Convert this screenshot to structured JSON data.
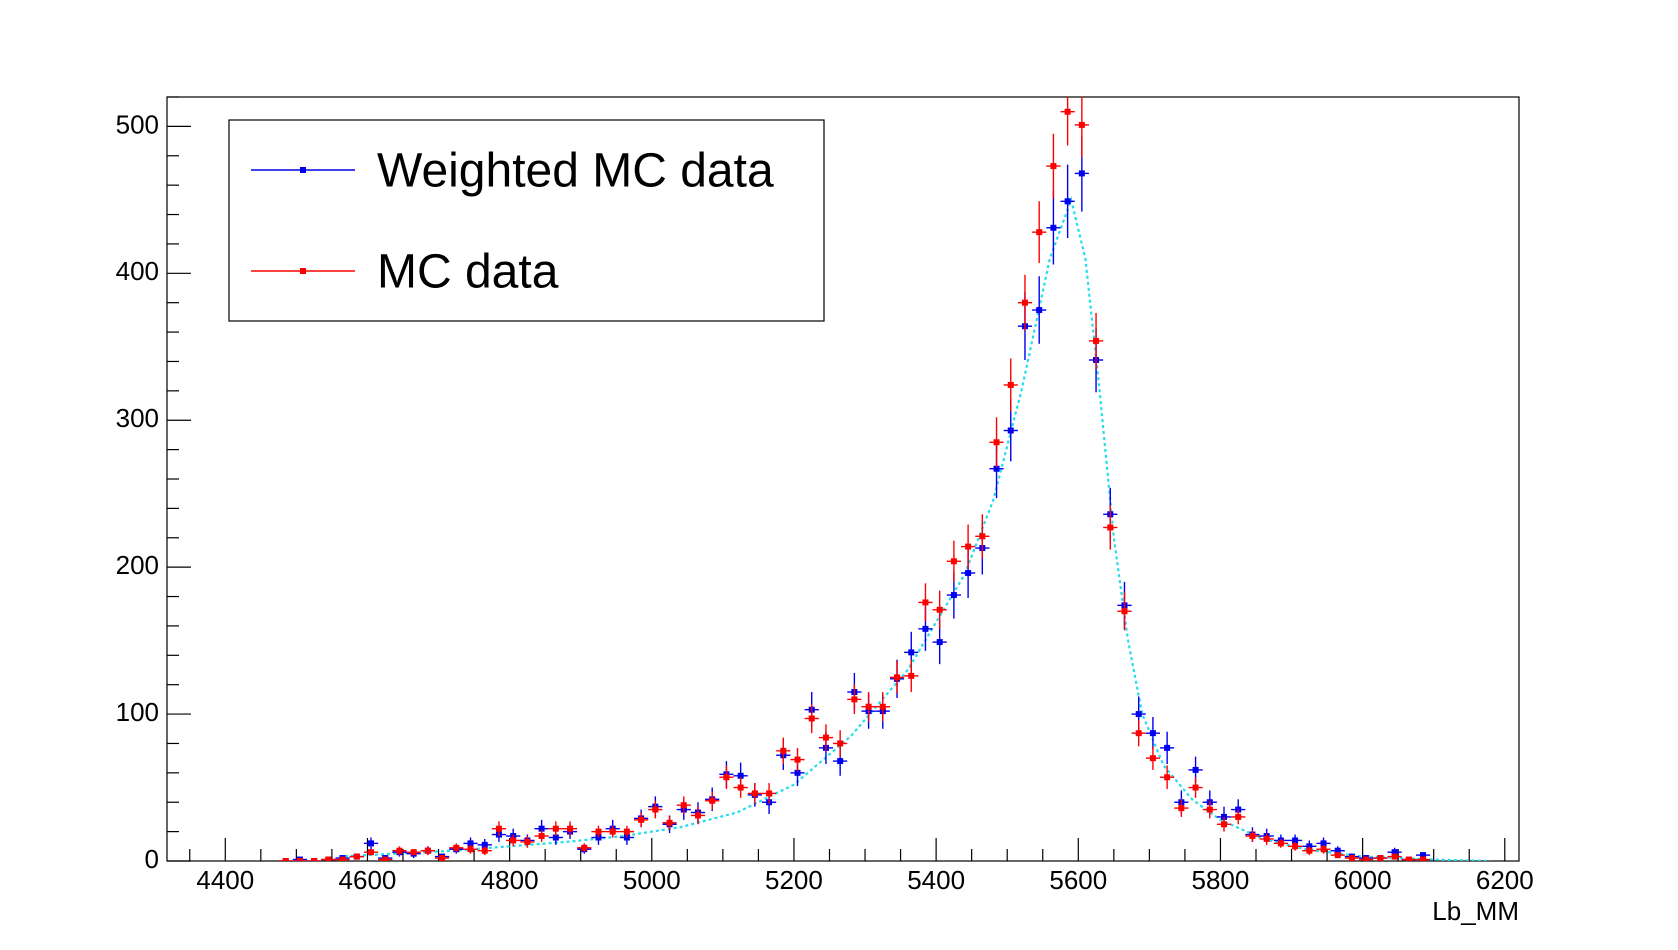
{
  "chart_data": {
    "type": "errorbar",
    "xlabel": "Lb_MM",
    "xlim": [
      4318,
      6220
    ],
    "ylim": [
      0,
      520
    ],
    "xticks": [
      4400,
      4600,
      4800,
      5000,
      5200,
      5400,
      5600,
      5800,
      6000,
      6200
    ],
    "xminorticks": [
      4350,
      4450,
      4500,
      4550,
      4650,
      4700,
      4750,
      4850,
      4900,
      4950,
      5050,
      5100,
      5150,
      5250,
      5300,
      5350,
      5450,
      5500,
      5550,
      5650,
      5700,
      5750,
      5850,
      5900,
      5950,
      6050,
      6100,
      6150
    ],
    "yticks": [
      0,
      100,
      200,
      300,
      400,
      500
    ],
    "yminorticks": [
      20,
      40,
      60,
      80,
      120,
      140,
      160,
      180,
      220,
      240,
      260,
      280,
      320,
      340,
      360,
      380,
      420,
      440,
      460,
      480,
      520
    ],
    "x": [
      4485,
      4505,
      4525,
      4545,
      4565,
      4585,
      4605,
      4625,
      4645,
      4665,
      4685,
      4705,
      4725,
      4745,
      4765,
      4785,
      4805,
      4825,
      4845,
      4865,
      4885,
      4905,
      4925,
      4945,
      4965,
      4985,
      5005,
      5025,
      5045,
      5065,
      5085,
      5105,
      5125,
      5145,
      5165,
      5185,
      5205,
      5225,
      5245,
      5265,
      5285,
      5305,
      5325,
      5345,
      5365,
      5385,
      5405,
      5425,
      5445,
      5465,
      5485,
      5505,
      5525,
      5545,
      5565,
      5585,
      5605,
      5625,
      5645,
      5665,
      5685,
      5705,
      5725,
      5745,
      5765,
      5785,
      5805,
      5825,
      5845,
      5865,
      5885,
      5905,
      5925,
      5945,
      5965,
      5985,
      6005,
      6025,
      6045,
      6065,
      6085
    ],
    "series": [
      {
        "name": "Weighted MC data",
        "color": "#0000ee",
        "values": [
          0,
          1,
          0,
          1,
          2,
          3,
          12,
          2,
          6,
          5,
          7,
          3,
          8,
          12,
          11,
          18,
          17,
          14,
          22,
          16,
          20,
          8,
          16,
          22,
          16,
          29,
          37,
          25,
          35,
          33,
          42,
          59,
          58,
          45,
          40,
          72,
          60,
          103,
          77,
          68,
          115,
          102,
          102,
          124,
          142,
          158,
          149,
          181,
          196,
          213,
          267,
          293,
          364,
          375,
          431,
          449,
          468,
          341,
          236,
          174,
          100,
          87,
          77,
          40,
          62,
          40,
          30,
          35,
          18,
          17,
          14,
          14,
          10,
          12,
          7,
          3,
          2,
          2,
          6,
          1,
          4
        ],
        "errors": [
          0,
          1,
          0,
          1,
          2,
          2,
          4,
          2,
          3,
          3,
          3,
          2,
          3,
          4,
          4,
          5,
          5,
          4,
          6,
          5,
          5,
          3,
          5,
          6,
          5,
          6,
          7,
          6,
          7,
          7,
          8,
          9,
          9,
          8,
          8,
          10,
          9,
          12,
          11,
          10,
          13,
          12,
          12,
          13,
          14,
          15,
          15,
          16,
          17,
          18,
          20,
          21,
          23,
          23,
          25,
          25,
          26,
          22,
          18,
          16,
          12,
          11,
          11,
          8,
          9,
          8,
          7,
          7,
          5,
          5,
          4,
          4,
          4,
          4,
          3,
          2,
          2,
          2,
          3,
          1,
          2
        ]
      },
      {
        "name": "MC data",
        "color": "#ff0000",
        "values": [
          0,
          0,
          0,
          1,
          1,
          3,
          6,
          1,
          7,
          6,
          7,
          2,
          9,
          8,
          7,
          22,
          14,
          13,
          17,
          22,
          22,
          9,
          20,
          20,
          20,
          28,
          35,
          26,
          38,
          31,
          41,
          57,
          50,
          46,
          46,
          75,
          69,
          97,
          84,
          80,
          110,
          105,
          105,
          125,
          126,
          176,
          171,
          204,
          214,
          221,
          285,
          324,
          380,
          428,
          473,
          510,
          501,
          354,
          227,
          170,
          87,
          70,
          57,
          36,
          50,
          35,
          25,
          30,
          17,
          15,
          12,
          10,
          7,
          8,
          4,
          2,
          1,
          2,
          3,
          1,
          1
        ],
        "errors": [
          0,
          0,
          0,
          1,
          1,
          2,
          2,
          1,
          3,
          2,
          3,
          1,
          3,
          3,
          3,
          5,
          4,
          4,
          4,
          5,
          5,
          3,
          4,
          4,
          4,
          5,
          6,
          5,
          6,
          6,
          6,
          8,
          7,
          7,
          7,
          9,
          8,
          10,
          9,
          9,
          10,
          10,
          10,
          11,
          11,
          13,
          13,
          14,
          15,
          15,
          17,
          18,
          19,
          21,
          22,
          23,
          22,
          19,
          15,
          13,
          9,
          8,
          8,
          6,
          7,
          6,
          5,
          5,
          4,
          4,
          3,
          3,
          3,
          3,
          2,
          1,
          1,
          1,
          2,
          1,
          1
        ]
      }
    ],
    "curve": {
      "color": "#22ddee",
      "x": [
        4560,
        4640,
        4720,
        4800,
        4880,
        4960,
        5040,
        5120,
        5200,
        5280,
        5360,
        5440,
        5480,
        5520,
        5560,
        5590,
        5610,
        5630,
        5650,
        5670,
        5690,
        5720,
        5760,
        5800,
        5860,
        5920,
        6000,
        6100,
        6180
      ],
      "values": [
        3,
        5,
        7,
        10,
        13,
        17,
        23,
        33,
        52,
        85,
        130,
        195,
        245,
        320,
        410,
        450,
        410,
        320,
        220,
        150,
        100,
        65,
        42,
        28,
        15,
        8,
        3,
        1,
        0
      ]
    }
  }
}
